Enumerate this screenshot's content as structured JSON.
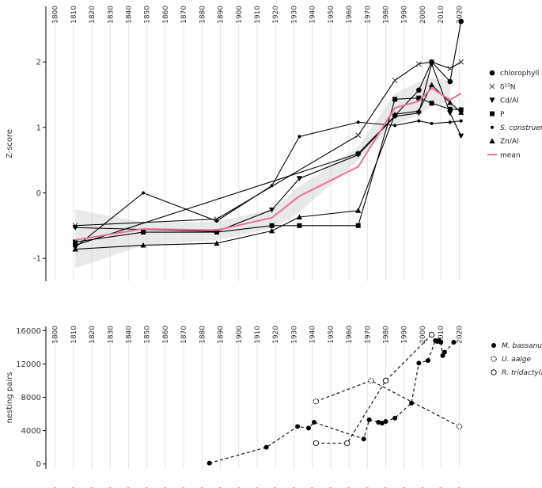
{
  "chart_data": [
    {
      "type": "line",
      "title": "",
      "xlabel": "",
      "ylabel": "Z-score",
      "xlim": [
        1795,
        2025
      ],
      "ylim": [
        -1.35,
        2.85
      ],
      "x_ticks": [
        1800,
        1810,
        1820,
        1830,
        1840,
        1850,
        1860,
        1870,
        1880,
        1890,
        1900,
        1910,
        1920,
        1930,
        1940,
        1950,
        1960,
        1970,
        1980,
        1990,
        2000,
        2010,
        2020
      ],
      "y_ticks": [
        -1,
        0,
        1,
        2
      ],
      "grid": "vertical",
      "legend_position": "right",
      "series": [
        {
          "name": "chlorophyll",
          "name_italic": "a",
          "marker": "circle",
          "x": [
            1811,
            1965,
            1985,
            1998,
            2005,
            2015,
            2021
          ],
          "y": [
            -0.8,
            0.6,
            1.18,
            1.57,
            2.0,
            1.7,
            2.62
          ]
        },
        {
          "name": "δ¹⁵N",
          "marker": "x",
          "x": [
            1811,
            1888,
            1965,
            1985,
            1998,
            2005,
            2015,
            2021
          ],
          "y": [
            -0.5,
            -0.4,
            0.88,
            1.72,
            1.97,
            2.0,
            1.9,
            2.0
          ]
        },
        {
          "name": "Cd/Al",
          "marker": "triangle-down",
          "x": [
            1811,
            1888,
            1918,
            1933,
            1965,
            1985,
            1998,
            2005,
            2015,
            2021
          ],
          "y": [
            -0.53,
            -0.59,
            -0.26,
            0.22,
            0.58,
            1.17,
            1.22,
            1.97,
            1.22,
            0.87
          ]
        },
        {
          "name": "P",
          "marker": "square",
          "x": [
            1811,
            1848,
            1888,
            1918,
            1933,
            1965,
            1985,
            1998,
            2005,
            2015,
            2021
          ],
          "y": [
            -0.75,
            -0.6,
            -0.6,
            -0.5,
            -0.5,
            -0.5,
            1.43,
            1.45,
            1.37,
            1.28,
            1.27
          ]
        },
        {
          "name": "construens",
          "name_italic_prefix": "S.",
          "marker": "small-circle",
          "x": [
            1811,
            1848,
            1888,
            1918,
            1933,
            1965,
            1985,
            1998,
            2005,
            2015,
            2021
          ],
          "y": [
            -0.83,
            0.0,
            -0.43,
            0.11,
            0.86,
            1.08,
            1.03,
            1.1,
            1.06,
            1.08,
            1.1
          ]
        },
        {
          "name": "Zn/Al",
          "marker": "triangle-up",
          "x": [
            1811,
            1848,
            1888,
            1918,
            1933,
            1965,
            1985,
            1998,
            2005,
            2015,
            2021
          ],
          "y": [
            -0.86,
            -0.8,
            -0.77,
            -0.58,
            -0.37,
            -0.27,
            1.2,
            1.25,
            1.65,
            1.38,
            1.23
          ]
        },
        {
          "name": "mean",
          "marker": "none",
          "color": "#e8709a",
          "x": [
            1811,
            1848,
            1888,
            1918,
            1933,
            1965,
            1985,
            1998,
            2005,
            2015,
            2021
          ],
          "y": [
            -0.72,
            -0.55,
            -0.57,
            -0.38,
            -0.05,
            0.4,
            1.3,
            1.4,
            1.6,
            1.42,
            1.52
          ]
        }
      ],
      "confidence_band": {
        "x": [
          1811,
          1848,
          1888,
          1918,
          1933,
          1965,
          1985,
          1998,
          2005,
          2015
        ],
        "lower": [
          -1.15,
          -0.8,
          -0.72,
          -0.55,
          -0.3,
          0.5,
          1.05,
          1.2,
          1.32,
          1.4
        ],
        "upper": [
          -0.25,
          -0.45,
          -0.44,
          -0.25,
          0.1,
          0.7,
          1.52,
          1.7,
          1.75,
          1.72
        ]
      }
    },
    {
      "type": "line",
      "title": "",
      "xlabel": "",
      "ylabel": "nesting pairs",
      "xlim": [
        1795,
        2025
      ],
      "ylim": [
        -600,
        16500
      ],
      "x_ticks": [
        1800,
        1810,
        1820,
        1830,
        1840,
        1850,
        1860,
        1870,
        1880,
        1890,
        1900,
        1910,
        1920,
        1930,
        1940,
        1950,
        1960,
        1970,
        1980,
        1990,
        2000,
        2010,
        2020
      ],
      "y_ticks": [
        0,
        4000,
        8000,
        12000,
        16000
      ],
      "grid": "vertical",
      "legend_position": "right",
      "series": [
        {
          "name_italic": "M. bassanus",
          "marker": "filled-circle",
          "x": [
            1884,
            1915,
            1932,
            1938,
            1941,
            1968,
            1971,
            1976,
            1978,
            1980,
            1985,
            1994,
            1998,
            2003,
            2007,
            2008,
            2009,
            2010,
            2011,
            2012,
            2017
          ],
          "y": [
            100,
            2000,
            4500,
            4300,
            5000,
            3000,
            5300,
            5000,
            4900,
            5100,
            5500,
            7300,
            12100,
            12400,
            14800,
            14700,
            14800,
            14600,
            13000,
            13400,
            14600
          ]
        },
        {
          "name_italic": "U. aalge",
          "marker": "dotted-circle",
          "x": [
            1942,
            1972,
            2020
          ],
          "y": [
            7500,
            10000,
            4500
          ]
        },
        {
          "name_italic": "R. tridactyla",
          "marker": "open-circle",
          "x": [
            1942,
            1959,
            1980,
            2005
          ],
          "y": [
            2500,
            2500,
            10000,
            15500
          ]
        }
      ]
    }
  ]
}
